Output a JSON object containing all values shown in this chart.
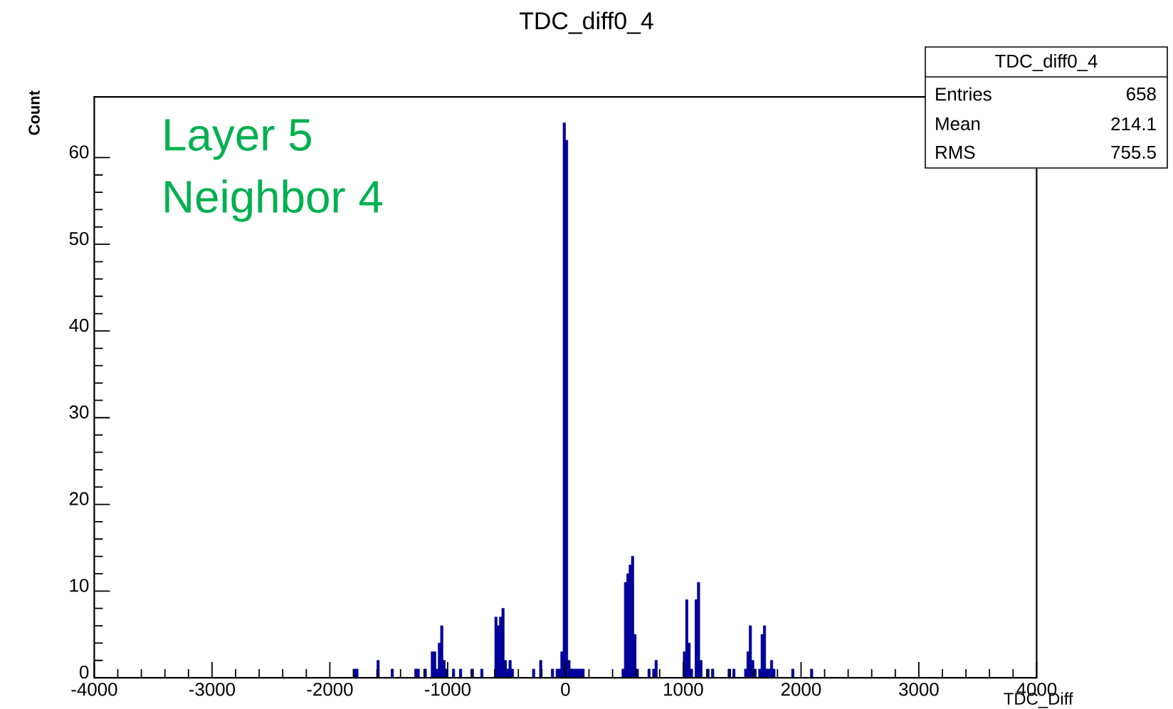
{
  "chart_data": {
    "type": "histogram",
    "title": "TDC_diff0_4",
    "xlabel": "TDC_Diff",
    "ylabel": "Count",
    "color": "#000099",
    "bins": [
      -4000,
      -1800,
      -1760,
      -1600,
      -1580,
      -1480,
      -1460,
      -1280,
      -1260,
      -1240,
      -1200,
      -1180,
      -1140,
      -1120,
      -1100,
      -1080,
      -1060,
      -1040,
      -1020,
      -1000,
      -960,
      -940,
      -900,
      -880,
      -800,
      -780,
      -720,
      -700,
      -600,
      -580,
      -560,
      -540,
      -520,
      -500,
      -480,
      -460,
      -440,
      -280,
      -260,
      -220,
      -200,
      -120,
      -100,
      -80,
      -60,
      -40,
      -20,
      0,
      20,
      40,
      60,
      80,
      100,
      120,
      140,
      160,
      480,
      500,
      520,
      540,
      560,
      580,
      600,
      620,
      700,
      720,
      740,
      760,
      780,
      1000,
      1020,
      1040,
      1060,
      1080,
      1100,
      1120,
      1140,
      1160,
      1200,
      1220,
      1240,
      1260,
      1380,
      1400,
      1420,
      1440,
      1520,
      1540,
      1560,
      1580,
      1600,
      1620,
      1640,
      1660,
      1680,
      1700,
      1720,
      1740,
      1760,
      1780,
      1920,
      1940,
      2080,
      2100,
      4000
    ],
    "values": [
      0,
      1,
      0,
      2,
      0,
      1,
      0,
      1,
      1,
      0,
      1,
      0,
      3,
      3,
      1,
      4,
      6,
      2,
      1,
      0,
      1,
      0,
      1,
      0,
      1,
      0,
      1,
      0,
      7,
      6,
      7,
      8,
      2,
      1,
      2,
      1,
      0,
      1,
      0,
      2,
      0,
      1,
      0,
      1,
      1,
      3,
      64,
      62,
      2,
      1,
      1,
      1,
      1,
      1,
      1,
      0,
      1,
      11,
      12,
      13,
      14,
      5,
      1,
      0,
      1,
      0,
      1,
      2,
      0,
      3,
      9,
      4,
      1,
      0,
      9,
      11,
      2,
      0,
      1,
      0,
      1,
      0,
      1,
      0,
      1,
      0,
      1,
      3,
      6,
      2,
      1,
      0,
      1,
      5,
      6,
      1,
      1,
      2,
      1,
      0,
      1,
      0,
      1,
      0
    ],
    "xlim": [
      -4000,
      4000
    ],
    "ylim": [
      0,
      67
    ],
    "xticks": [
      -4000,
      -3000,
      -2000,
      -1000,
      0,
      1000,
      2000,
      3000,
      4000
    ],
    "yticks": [
      0,
      10,
      20,
      30,
      40,
      50,
      60
    ],
    "annotations": [
      "Layer 5",
      "Neighbor 4",
      "TDC_diff0_4",
      "Entries",
      "658",
      "Mean",
      "214.1",
      "RMS",
      "755.5"
    ]
  }
}
